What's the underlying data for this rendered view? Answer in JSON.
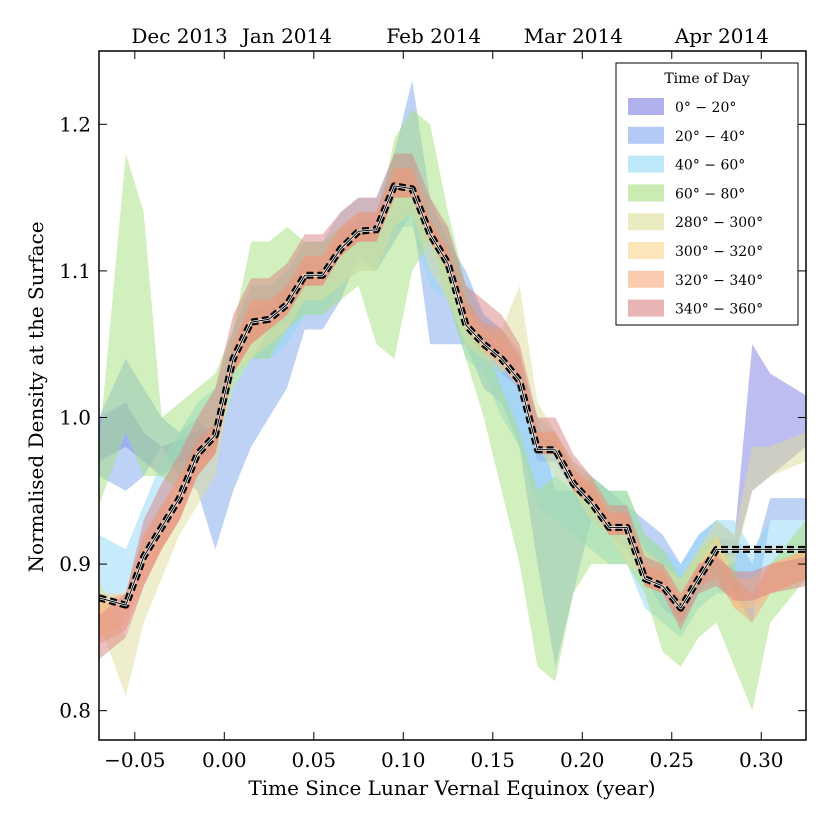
{
  "chart_data": {
    "type": "area",
    "title": "",
    "xlabel": "Time Since Lunar Vernal Equinox (year)",
    "ylabel": "Normalised Density at the Surface",
    "xlim": [
      -0.07,
      0.325
    ],
    "ylim": [
      0.78,
      1.25
    ],
    "xticks": [
      -0.05,
      0.0,
      0.05,
      0.1,
      0.15,
      0.2,
      0.25,
      0.3
    ],
    "xtick_labels": [
      "−0.05",
      "0.00",
      "0.05",
      "0.10",
      "0.15",
      "0.20",
      "0.25",
      "0.30"
    ],
    "yticks": [
      0.8,
      0.9,
      1.0,
      1.1,
      1.2
    ],
    "ytick_labels": [
      "0.8",
      "0.9",
      "1.0",
      "1.1",
      "1.2"
    ],
    "top_axis": {
      "labels": [
        "Dec 2013",
        "Jan 2014",
        "Feb 2014",
        "Mar 2014",
        "Apr 2014"
      ],
      "positions": [
        -0.025,
        0.035,
        0.117,
        0.195,
        0.278
      ]
    },
    "legend": {
      "title": "Time of Day",
      "location": "top-right"
    },
    "mean": {
      "x": [
        -0.07,
        -0.055,
        -0.045,
        -0.035,
        -0.025,
        -0.015,
        -0.005,
        0.005,
        0.015,
        0.025,
        0.035,
        0.045,
        0.055,
        0.065,
        0.075,
        0.085,
        0.095,
        0.105,
        0.115,
        0.125,
        0.135,
        0.145,
        0.155,
        0.165,
        0.175,
        0.185,
        0.195,
        0.205,
        0.215,
        0.225,
        0.235,
        0.245,
        0.255,
        0.265,
        0.275,
        0.285,
        0.295,
        0.305,
        0.325
      ],
      "y": [
        0.877,
        0.872,
        0.905,
        0.925,
        0.945,
        0.975,
        0.988,
        1.04,
        1.065,
        1.067,
        1.077,
        1.097,
        1.097,
        1.115,
        1.127,
        1.128,
        1.158,
        1.156,
        1.125,
        1.105,
        1.063,
        1.05,
        1.04,
        1.025,
        0.978,
        0.978,
        0.955,
        0.942,
        0.925,
        0.925,
        0.89,
        0.885,
        0.87,
        0.89,
        0.91,
        0.91,
        0.91,
        0.91,
        0.91
      ]
    },
    "series": [
      {
        "name": "0° − 20°",
        "color": "#7b7be0",
        "x": [
          -0.07,
          -0.055,
          -0.045,
          -0.035,
          -0.025,
          -0.015,
          -0.005,
          0.005,
          0.015,
          0.025,
          0.035,
          0.045,
          0.055,
          0.065,
          0.075,
          0.085,
          0.095,
          0.105,
          0.115,
          0.125,
          0.135,
          0.145,
          0.155,
          0.165,
          0.175,
          0.185,
          0.195,
          0.205,
          0.215,
          0.225,
          0.235,
          0.245,
          0.255,
          0.265,
          0.275,
          0.285,
          0.295,
          0.305,
          0.325
        ],
        "low": [
          0.97,
          0.98,
          0.97,
          0.96,
          0.97,
          0.97,
          0.975,
          1.03,
          1.05,
          1.06,
          1.065,
          1.09,
          1.09,
          1.11,
          1.12,
          1.12,
          1.15,
          1.15,
          1.12,
          1.1,
          1.06,
          1.04,
          1.03,
          1.02,
          0.97,
          0.97,
          0.95,
          0.94,
          0.92,
          0.92,
          0.885,
          0.88,
          0.865,
          0.885,
          0.905,
          0.905,
          0.95,
          0.96,
          0.98
        ],
        "high": [
          1.0,
          1.01,
          0.99,
          0.98,
          0.985,
          0.99,
          0.995,
          1.05,
          1.075,
          1.075,
          1.09,
          1.105,
          1.105,
          1.125,
          1.135,
          1.135,
          1.165,
          1.162,
          1.132,
          1.112,
          1.07,
          1.057,
          1.047,
          1.032,
          0.985,
          0.985,
          0.962,
          0.95,
          0.932,
          0.932,
          0.897,
          0.892,
          0.877,
          0.897,
          0.917,
          0.917,
          1.05,
          1.03,
          1.015
        ]
      },
      {
        "name": "20° − 40°",
        "color": "#7ea6ee",
        "x": [
          -0.07,
          -0.055,
          -0.045,
          -0.035,
          -0.025,
          -0.015,
          -0.005,
          0.005,
          0.015,
          0.025,
          0.035,
          0.045,
          0.055,
          0.065,
          0.075,
          0.085,
          0.095,
          0.105,
          0.115,
          0.125,
          0.135,
          0.145,
          0.155,
          0.165,
          0.175,
          0.185,
          0.195,
          0.205,
          0.215,
          0.225,
          0.235,
          0.245,
          0.255,
          0.265,
          0.275,
          0.285,
          0.295,
          0.305,
          0.325
        ],
        "low": [
          0.96,
          0.95,
          0.96,
          0.98,
          0.96,
          0.95,
          0.91,
          0.95,
          0.98,
          1.0,
          1.02,
          1.06,
          1.06,
          1.08,
          1.11,
          1.1,
          1.12,
          1.14,
          1.05,
          1.05,
          1.05,
          1.02,
          1.01,
          0.98,
          0.9,
          0.83,
          0.88,
          0.93,
          0.92,
          0.91,
          0.89,
          0.87,
          0.86,
          0.88,
          0.9,
          0.88,
          0.86,
          0.93,
          0.93
        ],
        "high": [
          1.0,
          1.04,
          1.02,
          1.0,
          0.99,
          1.0,
          0.98,
          1.02,
          1.04,
          1.06,
          1.08,
          1.1,
          1.1,
          1.12,
          1.14,
          1.14,
          1.18,
          1.23,
          1.15,
          1.12,
          1.1,
          1.07,
          1.06,
          1.04,
          1.0,
          0.95,
          0.95,
          0.96,
          0.95,
          0.94,
          0.93,
          0.92,
          0.9,
          0.92,
          0.93,
          0.92,
          0.9,
          0.945,
          0.945
        ]
      },
      {
        "name": "40° − 60°",
        "color": "#8fd8f5",
        "x": [
          -0.07,
          -0.055,
          -0.045,
          -0.035,
          -0.025,
          -0.015,
          -0.005,
          0.005,
          0.015,
          0.025,
          0.035,
          0.045,
          0.055,
          0.065,
          0.075,
          0.085,
          0.095,
          0.105,
          0.115,
          0.125,
          0.135,
          0.145,
          0.155,
          0.165,
          0.175,
          0.185,
          0.195,
          0.205,
          0.215,
          0.225,
          0.235,
          0.245,
          0.255,
          0.265,
          0.275,
          0.285,
          0.295,
          0.305,
          0.325
        ],
        "low": [
          0.88,
          0.87,
          0.9,
          0.93,
          0.96,
          0.97,
          0.98,
          1.02,
          1.04,
          1.04,
          1.05,
          1.07,
          1.07,
          1.09,
          1.1,
          1.1,
          1.13,
          1.13,
          1.09,
          1.08,
          1.04,
          1.03,
          1.0,
          0.98,
          0.94,
          0.93,
          0.92,
          0.91,
          0.9,
          0.9,
          0.87,
          0.86,
          0.85,
          0.87,
          0.88,
          0.88,
          0.86,
          0.9,
          0.9
        ],
        "high": [
          0.92,
          0.91,
          0.94,
          0.97,
          0.99,
          1.01,
          1.02,
          1.06,
          1.09,
          1.09,
          1.1,
          1.12,
          1.12,
          1.14,
          1.15,
          1.15,
          1.18,
          1.18,
          1.14,
          1.13,
          1.09,
          1.07,
          1.06,
          1.04,
          1.0,
          0.99,
          0.97,
          0.96,
          0.95,
          0.95,
          0.92,
          0.91,
          0.9,
          0.92,
          0.93,
          0.93,
          0.91,
          0.93,
          0.93
        ]
      },
      {
        "name": "60° − 80°",
        "color": "#a6e07e",
        "x": [
          -0.07,
          -0.055,
          -0.045,
          -0.035,
          -0.025,
          -0.015,
          -0.005,
          0.005,
          0.015,
          0.025,
          0.035,
          0.045,
          0.055,
          0.065,
          0.075,
          0.085,
          0.095,
          0.105,
          0.115,
          0.125,
          0.135,
          0.145,
          0.155,
          0.165,
          0.175,
          0.185,
          0.195,
          0.205,
          0.215,
          0.225,
          0.235,
          0.245,
          0.255,
          0.265,
          0.275,
          0.285,
          0.295,
          0.305,
          0.325
        ],
        "low": [
          0.94,
          0.99,
          0.96,
          0.96,
          0.95,
          0.97,
          0.98,
          1.02,
          1.04,
          1.04,
          1.06,
          1.07,
          1.07,
          1.08,
          1.09,
          1.05,
          1.04,
          1.1,
          1.12,
          1.08,
          1.04,
          1.0,
          0.95,
          0.9,
          0.83,
          0.82,
          0.88,
          0.9,
          0.9,
          0.9,
          0.88,
          0.84,
          0.83,
          0.85,
          0.86,
          0.83,
          0.8,
          0.86,
          0.89
        ],
        "high": [
          0.98,
          1.18,
          1.14,
          1.0,
          1.01,
          1.02,
          1.03,
          1.06,
          1.12,
          1.12,
          1.13,
          1.12,
          1.12,
          1.13,
          1.13,
          1.13,
          1.19,
          1.21,
          1.2,
          1.14,
          1.09,
          1.05,
          1.02,
          0.99,
          0.95,
          0.96,
          0.95,
          0.96,
          0.95,
          0.95,
          0.92,
          0.91,
          0.89,
          0.91,
          0.92,
          0.9,
          0.86,
          0.9,
          0.93
        ]
      },
      {
        "name": "280° − 300°",
        "color": "#dede9a",
        "x": [
          -0.07,
          -0.055,
          -0.045,
          -0.035,
          -0.025,
          -0.015,
          -0.005,
          0.005,
          0.015,
          0.025,
          0.035,
          0.045,
          0.055,
          0.065,
          0.075,
          0.085,
          0.095,
          0.105,
          0.115,
          0.125,
          0.135,
          0.145,
          0.155,
          0.165,
          0.175,
          0.185,
          0.195,
          0.205,
          0.215,
          0.225,
          0.235,
          0.245,
          0.255,
          0.265,
          0.275,
          0.285,
          0.295,
          0.305,
          0.325
        ],
        "low": [
          0.86,
          0.81,
          0.86,
          0.89,
          0.92,
          0.94,
          0.96,
          1.03,
          1.04,
          1.05,
          1.06,
          1.08,
          1.08,
          1.09,
          1.1,
          1.1,
          1.13,
          1.14,
          1.1,
          1.08,
          1.05,
          1.04,
          1.03,
          1.04,
          0.98,
          0.96,
          0.95,
          0.93,
          0.92,
          0.9,
          0.89,
          0.88,
          0.87,
          0.89,
          0.9,
          0.9,
          0.95,
          0.96,
          0.97
        ],
        "high": [
          0.89,
          0.85,
          0.89,
          0.92,
          0.94,
          0.97,
          0.98,
          1.05,
          1.07,
          1.07,
          1.08,
          1.1,
          1.1,
          1.12,
          1.13,
          1.13,
          1.16,
          1.16,
          1.13,
          1.11,
          1.07,
          1.06,
          1.06,
          1.09,
          1.01,
          0.99,
          0.97,
          0.96,
          0.94,
          0.93,
          0.91,
          0.9,
          0.89,
          0.91,
          0.93,
          0.92,
          0.98,
          0.98,
          0.99
        ]
      },
      {
        "name": "300° − 320°",
        "color": "#fad48a",
        "x": [
          -0.07,
          -0.055,
          -0.045,
          -0.035,
          -0.025,
          -0.015,
          -0.005,
          0.005,
          0.015,
          0.025,
          0.035,
          0.045,
          0.055,
          0.065,
          0.075,
          0.085,
          0.095,
          0.105,
          0.115,
          0.125,
          0.135,
          0.145,
          0.155,
          0.165,
          0.175,
          0.185,
          0.195,
          0.205,
          0.215,
          0.225,
          0.235,
          0.245,
          0.255,
          0.265,
          0.275,
          0.285,
          0.295,
          0.305,
          0.325
        ],
        "low": [
          0.85,
          0.86,
          0.89,
          0.91,
          0.93,
          0.96,
          0.975,
          1.03,
          1.05,
          1.06,
          1.07,
          1.09,
          1.09,
          1.11,
          1.12,
          1.12,
          1.15,
          1.15,
          1.12,
          1.1,
          1.06,
          1.045,
          1.035,
          1.02,
          0.975,
          0.975,
          0.95,
          0.94,
          0.92,
          0.92,
          0.885,
          0.88,
          0.865,
          0.885,
          0.905,
          0.87,
          0.87,
          0.88,
          0.89
        ],
        "high": [
          0.88,
          0.88,
          0.92,
          0.94,
          0.96,
          0.98,
          0.995,
          1.05,
          1.08,
          1.08,
          1.09,
          1.11,
          1.11,
          1.13,
          1.14,
          1.14,
          1.17,
          1.17,
          1.135,
          1.115,
          1.075,
          1.06,
          1.055,
          1.04,
          0.99,
          0.99,
          0.965,
          0.955,
          0.935,
          0.935,
          0.9,
          0.895,
          0.88,
          0.9,
          0.92,
          0.89,
          0.89,
          0.9,
          0.91
        ]
      },
      {
        "name": "320° − 340°",
        "color": "#f8a87a",
        "x": [
          -0.07,
          -0.055,
          -0.045,
          -0.035,
          -0.025,
          -0.015,
          -0.005,
          0.005,
          0.015,
          0.025,
          0.035,
          0.045,
          0.055,
          0.065,
          0.075,
          0.085,
          0.095,
          0.105,
          0.115,
          0.125,
          0.135,
          0.145,
          0.155,
          0.165,
          0.175,
          0.185,
          0.195,
          0.205,
          0.215,
          0.225,
          0.235,
          0.245,
          0.255,
          0.265,
          0.275,
          0.285,
          0.295,
          0.305,
          0.325
        ],
        "low": [
          0.845,
          0.855,
          0.885,
          0.91,
          0.93,
          0.96,
          0.975,
          1.03,
          1.05,
          1.06,
          1.07,
          1.09,
          1.09,
          1.11,
          1.12,
          1.12,
          1.15,
          1.15,
          1.12,
          1.1,
          1.06,
          1.045,
          1.035,
          1.02,
          0.975,
          0.975,
          0.95,
          0.94,
          0.92,
          0.92,
          0.885,
          0.88,
          0.86,
          0.885,
          0.89,
          0.87,
          0.86,
          0.88,
          0.89
        ],
        "high": [
          0.875,
          0.88,
          0.92,
          0.94,
          0.96,
          0.985,
          0.995,
          1.05,
          1.08,
          1.08,
          1.09,
          1.11,
          1.11,
          1.13,
          1.14,
          1.14,
          1.17,
          1.17,
          1.135,
          1.115,
          1.08,
          1.065,
          1.06,
          1.045,
          0.99,
          0.99,
          0.965,
          0.955,
          0.935,
          0.935,
          0.9,
          0.895,
          0.875,
          0.9,
          0.91,
          0.89,
          0.88,
          0.9,
          0.91
        ]
      },
      {
        "name": "340° − 360°",
        "color": "#d98282",
        "x": [
          -0.07,
          -0.055,
          -0.045,
          -0.035,
          -0.025,
          -0.015,
          -0.005,
          0.005,
          0.015,
          0.025,
          0.035,
          0.045,
          0.055,
          0.065,
          0.075,
          0.085,
          0.095,
          0.105,
          0.115,
          0.125,
          0.135,
          0.145,
          0.155,
          0.165,
          0.175,
          0.185,
          0.195,
          0.205,
          0.215,
          0.225,
          0.235,
          0.245,
          0.255,
          0.265,
          0.275,
          0.285,
          0.295,
          0.305,
          0.325
        ],
        "low": [
          0.835,
          0.85,
          0.885,
          0.91,
          0.93,
          0.96,
          0.975,
          1.03,
          1.05,
          1.06,
          1.07,
          1.09,
          1.09,
          1.11,
          1.12,
          1.12,
          1.15,
          1.15,
          1.12,
          1.1,
          1.065,
          1.05,
          1.04,
          1.02,
          0.975,
          0.975,
          0.95,
          0.94,
          0.92,
          0.92,
          0.885,
          0.88,
          0.855,
          0.88,
          0.885,
          0.875,
          0.875,
          0.88,
          0.885
        ],
        "high": [
          0.865,
          0.88,
          0.93,
          0.955,
          0.975,
          1.0,
          1.02,
          1.07,
          1.095,
          1.095,
          1.105,
          1.125,
          1.125,
          1.14,
          1.15,
          1.15,
          1.18,
          1.18,
          1.15,
          1.13,
          1.09,
          1.08,
          1.07,
          1.05,
          1.0,
          1.0,
          0.975,
          0.96,
          0.94,
          0.94,
          0.905,
          0.9,
          0.88,
          0.9,
          0.905,
          0.895,
          0.895,
          0.9,
          0.905
        ]
      }
    ]
  }
}
